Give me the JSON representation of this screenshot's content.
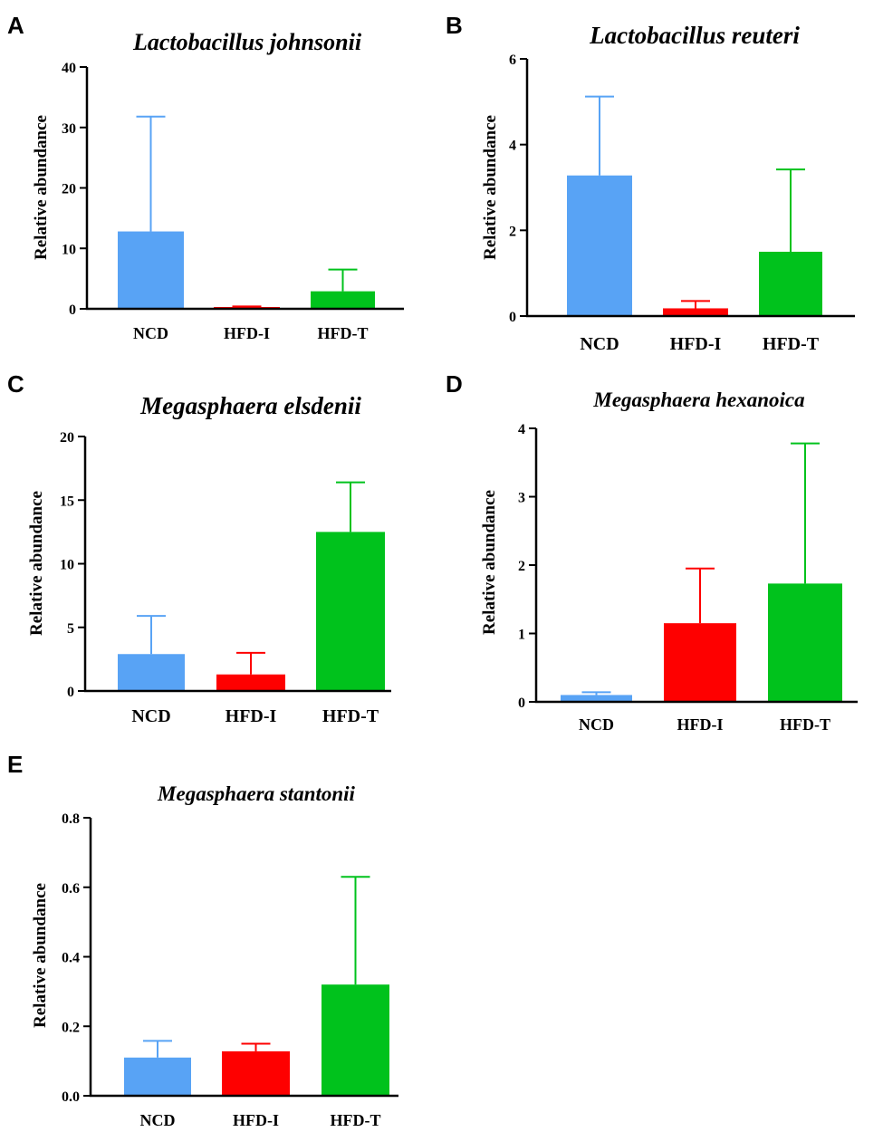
{
  "colors": {
    "NCD": "#58a3f5",
    "HFD-I": "#fe0000",
    "HFD-T": "#00c21c"
  },
  "chart_data": [
    {
      "panel": "A",
      "type": "bar",
      "title": "Lactobacillus johnsonii",
      "ylabel": "Relative abundance",
      "categories": [
        "NCD",
        "HFD-I",
        "HFD-T"
      ],
      "values": [
        12.8,
        0.3,
        2.9
      ],
      "error_upper": [
        31.8,
        0.4,
        6.5
      ],
      "ylim": [
        0,
        40
      ],
      "yticks": [
        0,
        10,
        20,
        30,
        40
      ],
      "ytick_labels": [
        "0",
        "10",
        "20",
        "30",
        "40"
      ]
    },
    {
      "panel": "B",
      "type": "bar",
      "title": "Lactobacillus reuteri",
      "ylabel": "Relative abundance",
      "categories": [
        "NCD",
        "HFD-I",
        "HFD-T"
      ],
      "values": [
        3.28,
        0.18,
        1.5
      ],
      "error_upper": [
        5.12,
        0.35,
        3.42
      ],
      "ylim": [
        0,
        6
      ],
      "yticks": [
        0,
        2,
        4,
        6
      ],
      "ytick_labels": [
        "0",
        "2",
        "4",
        "6"
      ]
    },
    {
      "panel": "C",
      "type": "bar",
      "title": "Megasphaera elsdenii",
      "ylabel": "Relative abundance",
      "categories": [
        "NCD",
        "HFD-I",
        "HFD-T"
      ],
      "values": [
        2.9,
        1.3,
        12.5
      ],
      "error_upper": [
        5.9,
        3.0,
        16.4
      ],
      "ylim": [
        0,
        20
      ],
      "yticks": [
        0,
        5,
        10,
        15,
        20
      ],
      "ytick_labels": [
        "0",
        "5",
        "10",
        "15",
        "20"
      ]
    },
    {
      "panel": "D",
      "type": "bar",
      "title": "Megasphaera hexanoica",
      "ylabel": "Relative abundance",
      "categories": [
        "NCD",
        "HFD-I",
        "HFD-T"
      ],
      "values": [
        0.1,
        1.15,
        1.73
      ],
      "error_upper": [
        0.14,
        1.95,
        3.78
      ],
      "ylim": [
        0,
        4
      ],
      "yticks": [
        0,
        1,
        2,
        3,
        4
      ],
      "ytick_labels": [
        "0",
        "1",
        "2",
        "3",
        "4"
      ]
    },
    {
      "panel": "E",
      "type": "bar",
      "title": "Megasphaera stantonii",
      "ylabel": "Relative abundance",
      "categories": [
        "NCD",
        "HFD-I",
        "HFD-T"
      ],
      "values": [
        0.11,
        0.128,
        0.32
      ],
      "error_upper": [
        0.158,
        0.15,
        0.63
      ],
      "ylim": [
        0,
        0.8
      ],
      "yticks": [
        0,
        0.2,
        0.4,
        0.6,
        0.8
      ],
      "ytick_labels": [
        "0.0",
        "0.2",
        "0.4",
        "0.6",
        "0.8"
      ]
    }
  ]
}
